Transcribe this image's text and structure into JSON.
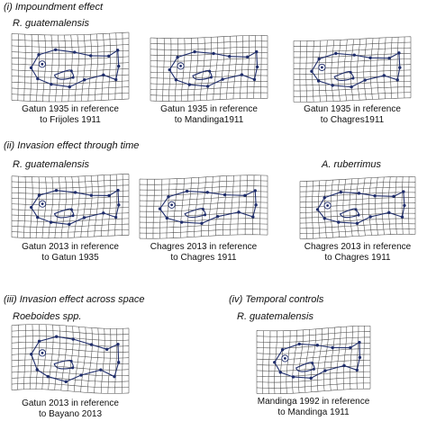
{
  "sections": {
    "s1": {
      "title": "(i) Impoundment effect",
      "species": "R. guatemalensis"
    },
    "s2": {
      "title": "(ii) Invasion effect through time",
      "species": "R. guatemalensis",
      "species_right": "A. ruberrimus"
    },
    "s3": {
      "title": "(iii) Invasion effect across space",
      "species": "Roeboides spp."
    },
    "s4": {
      "title": "(iv) Temporal controls",
      "species": "R. guatemalensis"
    }
  },
  "panels": [
    {
      "line1": "Gatun 1935 in reference",
      "line2": "to Frijoles 1911"
    },
    {
      "line1": "Gatun 1935 in reference",
      "line2": "to Mandinga1911"
    },
    {
      "line1": "Gatun 1935 in reference",
      "line2": "to Chagres1911"
    },
    {
      "line1": "Gatun 2013 in reference",
      "line2": "to Gatun 1935"
    },
    {
      "line1": "Chagres 2013 in reference",
      "line2": "to Chagres 1911"
    },
    {
      "line1": "Chagres 2013 in reference",
      "line2": "to Chagres 1911"
    },
    {
      "line1": "Gatun 2013 in reference",
      "line2": "to Bayano 2013"
    },
    {
      "line1": "Mandinga 1992 in reference",
      "line2": "to Mandinga 1911"
    }
  ]
}
